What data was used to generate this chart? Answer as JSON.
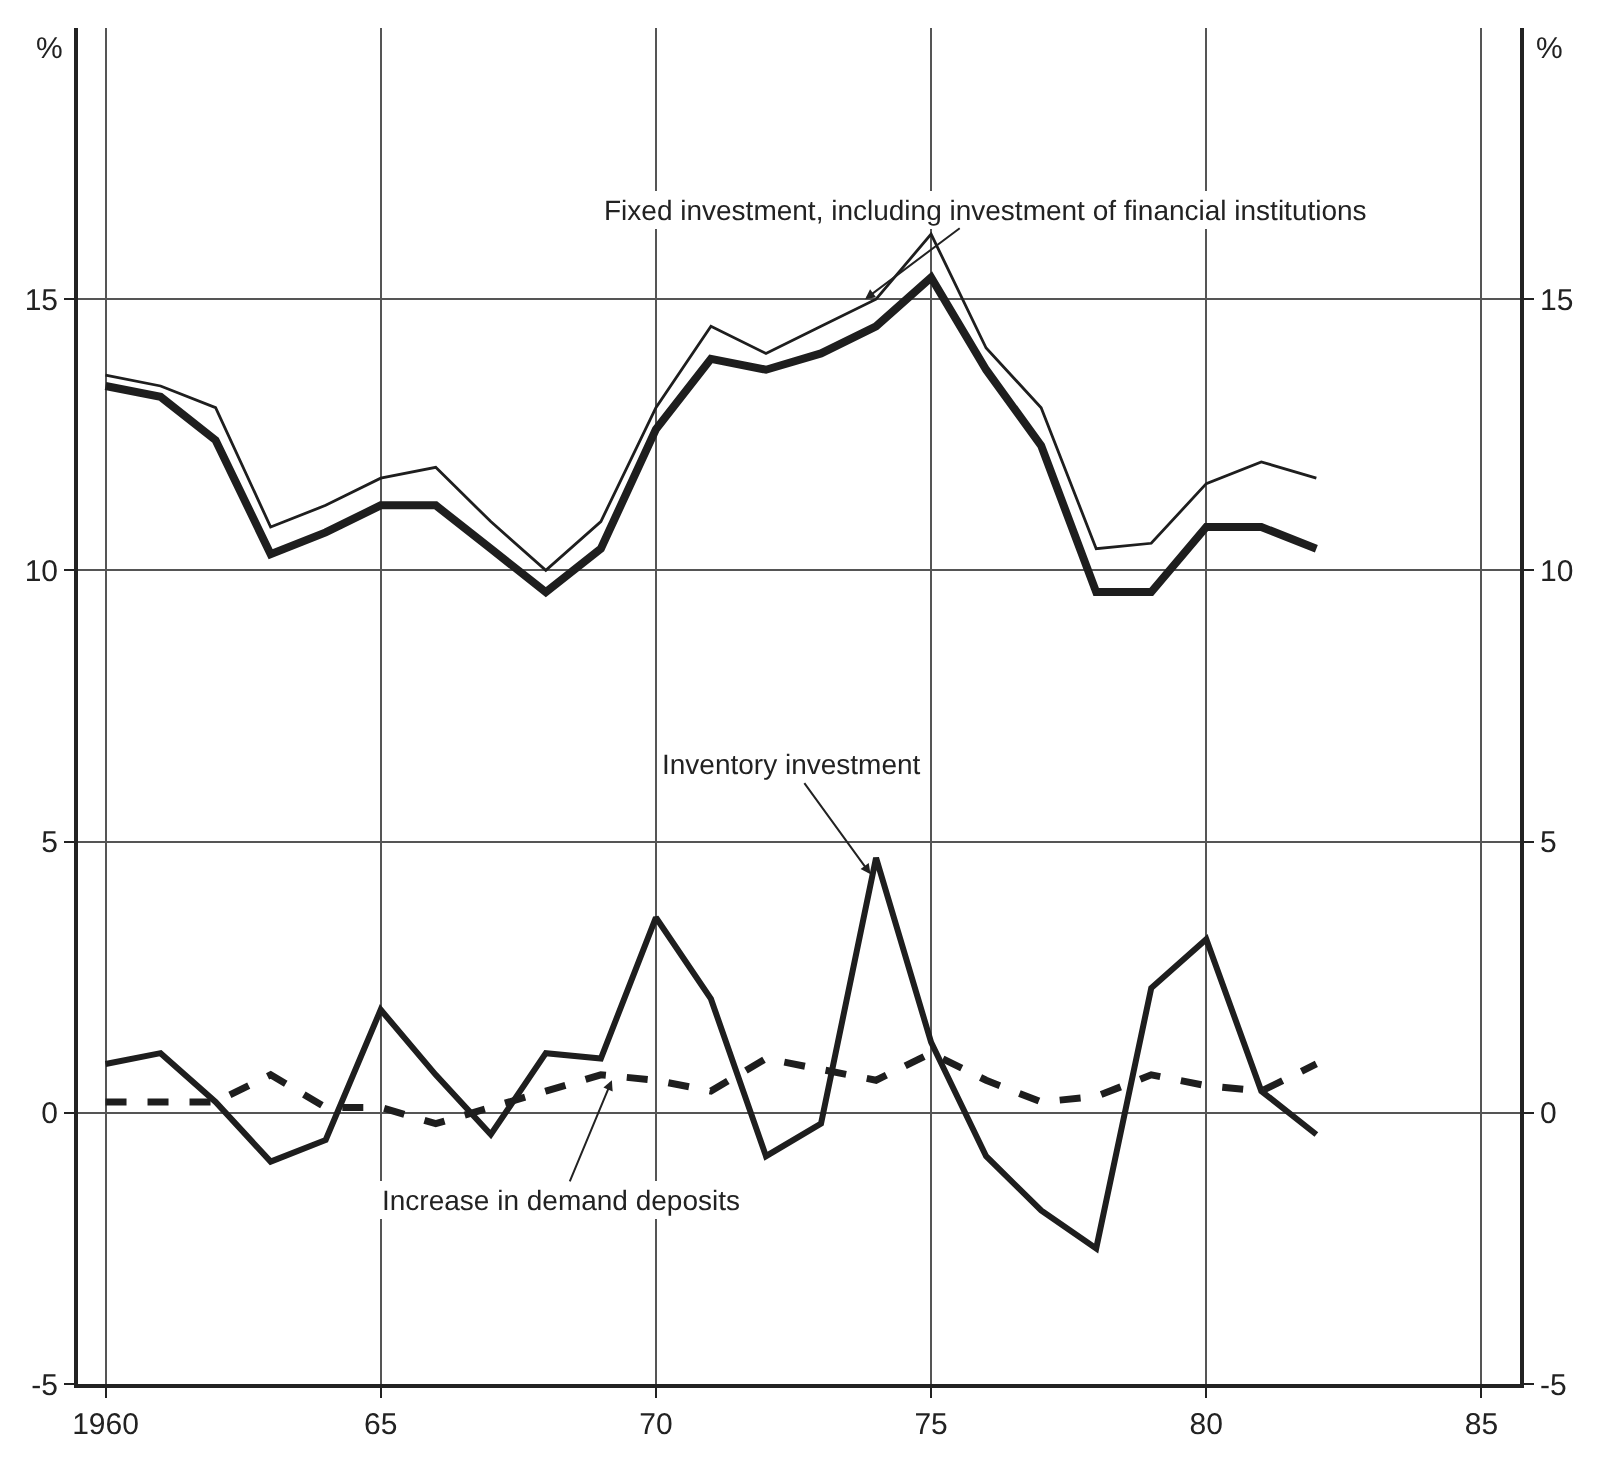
{
  "chart_data": {
    "type": "line",
    "x": [
      1960,
      1961,
      1962,
      1963,
      1964,
      1965,
      1966,
      1967,
      1968,
      1969,
      1970,
      1971,
      1972,
      1973,
      1974,
      1975,
      1976,
      1977,
      1978,
      1979,
      1980,
      1981,
      1982
    ],
    "series": [
      {
        "color": "#1e1e1e",
        "values": [
          13.6,
          13.4,
          13.0,
          10.8,
          11.2,
          11.7,
          11.9,
          10.9,
          10.0,
          10.9,
          13.0,
          14.5,
          14.0,
          14.5,
          15.0,
          16.2,
          14.1,
          13.0,
          10.4,
          10.5,
          11.6,
          12.0,
          11.7
        ]
      },
      {
        "color": "#1e1e1e",
        "values": [
          13.4,
          13.2,
          12.4,
          10.3,
          10.7,
          11.2,
          11.2,
          10.4,
          9.6,
          10.4,
          12.6,
          13.9,
          13.7,
          14.0,
          14.5,
          15.4,
          13.7,
          12.3,
          9.6,
          9.6,
          10.8,
          10.8,
          10.4
        ]
      },
      {
        "color": "#1e1e1e",
        "values": [
          0.9,
          1.1,
          0.2,
          -0.9,
          -0.5,
          1.9,
          0.7,
          -0.4,
          1.1,
          1.0,
          3.6,
          2.1,
          -0.8,
          -0.2,
          4.7,
          1.3,
          -0.8,
          -1.8,
          -2.5,
          2.3,
          3.2,
          0.4,
          -0.4
        ]
      },
      {
        "color": "#1e1e1e",
        "line_style": "dashed",
        "values": [
          0.2,
          0.2,
          0.2,
          0.7,
          0.1,
          0.1,
          -0.2,
          0.1,
          0.4,
          0.7,
          0.6,
          0.4,
          1.0,
          0.8,
          0.6,
          1.1,
          0.6,
          0.2,
          0.3,
          0.7,
          0.5,
          0.4,
          0.9
        ]
      }
    ],
    "annotations": [
      {
        "text": "Fixed investment, including investment of financial institutions",
        "x": 1973.8,
        "y": 15.0
      },
      {
        "text": "Inventory investment",
        "x": 1973.9,
        "y": 4.4
      },
      {
        "text": "Increase in demand deposits",
        "x": 1969.2,
        "y": 0.6
      }
    ],
    "ylabel": "%",
    "y2label": "%",
    "xlim": [
      1959.5,
      1985.7
    ],
    "xticks": [
      {
        "value": 1960,
        "label": "1960"
      },
      {
        "value": 1965,
        "label": "65"
      },
      {
        "value": 1970,
        "label": "70"
      },
      {
        "value": 1975,
        "label": "75"
      },
      {
        "value": 1980,
        "label": "80"
      },
      {
        "value": 1985,
        "label": "85"
      }
    ],
    "ylim": [
      -5,
      20
    ],
    "yticks": [
      -5,
      0,
      5,
      10,
      15
    ],
    "y2lim": [
      -5,
      20
    ],
    "y2ticks": [
      -5,
      0,
      5,
      10,
      15
    ],
    "grid": true,
    "marker": "none",
    "line_style": "solid"
  }
}
